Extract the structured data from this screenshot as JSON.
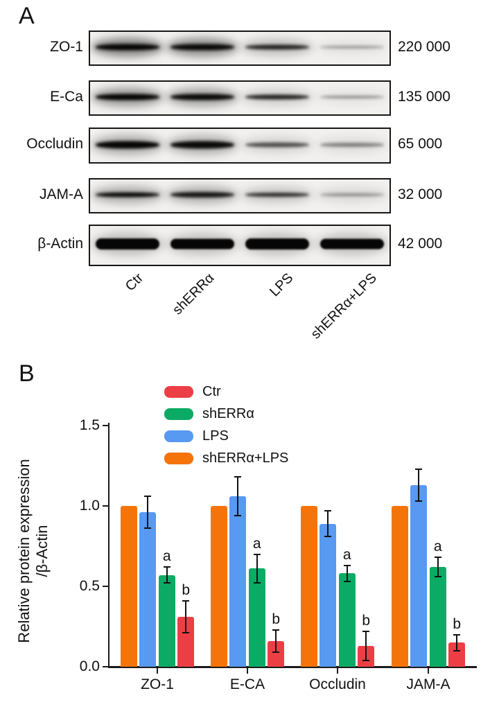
{
  "panel_a": {
    "label": "A",
    "lane_labels": [
      "Ctr",
      "shERRα",
      "LPS",
      "shERRα+LPS"
    ],
    "rows": [
      {
        "protein": "ZO-1",
        "mw": "220 000",
        "bands": [
          {
            "intensity": 1.0,
            "thickness": 9,
            "halo": 0.5
          },
          {
            "intensity": 0.97,
            "thickness": 9,
            "halo": 0.45
          },
          {
            "intensity": 0.85,
            "thickness": 7,
            "halo": 0.22
          },
          {
            "intensity": 0.35,
            "thickness": 4,
            "halo": 0.06
          }
        ]
      },
      {
        "protein": "E-Ca",
        "mw": "135 000",
        "bands": [
          {
            "intensity": 1.0,
            "thickness": 9,
            "halo": 0.4
          },
          {
            "intensity": 0.97,
            "thickness": 9,
            "halo": 0.35
          },
          {
            "intensity": 0.85,
            "thickness": 7,
            "halo": 0.15
          },
          {
            "intensity": 0.4,
            "thickness": 4,
            "halo": 0.05
          }
        ]
      },
      {
        "protein": "Occludin",
        "mw": "65 000",
        "bands": [
          {
            "intensity": 1.0,
            "thickness": 11,
            "halo": 0.3
          },
          {
            "intensity": 0.97,
            "thickness": 11,
            "halo": 0.28
          },
          {
            "intensity": 0.65,
            "thickness": 7,
            "halo": 0.12
          },
          {
            "intensity": 0.45,
            "thickness": 6,
            "halo": 0.08
          }
        ]
      },
      {
        "protein": "JAM-A",
        "mw": "32 000",
        "bands": [
          {
            "intensity": 0.97,
            "thickness": 7,
            "halo": 0.3
          },
          {
            "intensity": 0.9,
            "thickness": 8,
            "halo": 0.28
          },
          {
            "intensity": 0.8,
            "thickness": 6,
            "halo": 0.18
          },
          {
            "intensity": 0.4,
            "thickness": 4,
            "halo": 0.1
          }
        ]
      },
      {
        "protein": "β-Actin",
        "mw": "42 000",
        "bands": [
          {
            "intensity": 1.0,
            "thickness": 16,
            "halo": 0.22
          },
          {
            "intensity": 1.0,
            "thickness": 15,
            "halo": 0.2
          },
          {
            "intensity": 1.0,
            "thickness": 16,
            "halo": 0.2
          },
          {
            "intensity": 1.0,
            "thickness": 15,
            "halo": 0.2
          }
        ]
      }
    ]
  },
  "panel_b": {
    "label": "B",
    "legend": [
      {
        "label": "Ctr",
        "color": "#ec3e45"
      },
      {
        "label": "shERRα",
        "color": "#0bab66"
      },
      {
        "label": "LPS",
        "color": "#5899f1"
      },
      {
        "label": "shERRα+LPS",
        "color": "#f5740a"
      }
    ]
  },
  "chart_data": {
    "type": "bar",
    "title": "",
    "xlabel": "",
    "ylabel": "Relative protein expression /β-Actin",
    "ylabel_lines": [
      "Relative protein expression",
      "/β-Actin"
    ],
    "categories": [
      "ZO-1",
      "E-CA",
      "Occludin",
      "JAM-A"
    ],
    "series": [
      {
        "name": "shERRα+LPS",
        "color": "#f5740a",
        "values": [
          1.0,
          1.0,
          1.0,
          1.0
        ],
        "errors": [
          0,
          0,
          0,
          0
        ],
        "sig": ""
      },
      {
        "name": "LPS",
        "color": "#5899f1",
        "values": [
          0.96,
          1.06,
          0.89,
          1.13
        ],
        "errors": [
          0.1,
          0.12,
          0.08,
          0.1
        ],
        "sig": ""
      },
      {
        "name": "shERRα",
        "color": "#0bab66",
        "values": [
          0.57,
          0.61,
          0.58,
          0.62
        ],
        "errors": [
          0.05,
          0.09,
          0.05,
          0.06
        ],
        "sig": "a"
      },
      {
        "name": "Ctr",
        "color": "#ec3e45",
        "values": [
          0.31,
          0.16,
          0.13,
          0.15
        ],
        "errors": [
          0.1,
          0.07,
          0.09,
          0.05
        ],
        "sig": "b"
      }
    ],
    "yticks": [
      "0.0",
      "0.5",
      "1.0",
      "1.5"
    ],
    "ylim": [
      0,
      1.5
    ],
    "grid": false,
    "legend_position": "top-center",
    "error_bars": true
  }
}
